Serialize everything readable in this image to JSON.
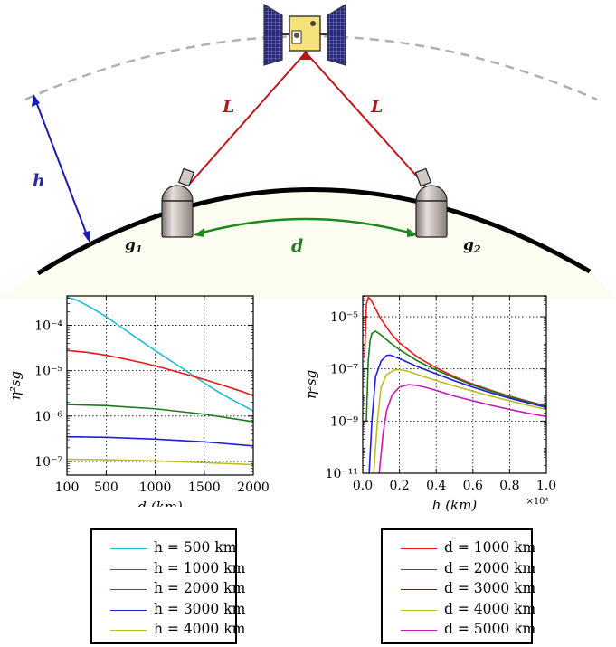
{
  "scene": {
    "label_L_left": "L",
    "label_L_right": "L",
    "label_h": "h",
    "label_d": "d",
    "label_g1": "g",
    "label_g1_sub": "1",
    "label_g2": "g",
    "label_g2_sub": "2",
    "colors": {
      "link": "#c0141b",
      "arc": "#1a8a1a",
      "altitude": "#1b1bb0",
      "orbit": "#b0b0b0"
    }
  },
  "chart_data": [
    {
      "type": "line",
      "xlabel": "d (km)",
      "ylabel": "η²sg",
      "xlim": [
        100,
        2000
      ],
      "ylim_exp": [
        -7.3,
        -3.35
      ],
      "y_scale": "log",
      "grid": true,
      "xticks": [
        "100",
        "500",
        "1000",
        "1500",
        "2000"
      ],
      "xtick_values": [
        100,
        500,
        1000,
        1500,
        2000
      ],
      "yticks": [
        "10⁻⁷",
        "10⁻⁶",
        "10⁻⁵",
        "10⁻⁴"
      ],
      "ytick_exps": [
        -7,
        -6,
        -5,
        -4
      ],
      "legend_placement": "below",
      "series": [
        {
          "name": "h = 500 km",
          "color": "#17becf",
          "x": [
            100,
            200,
            300,
            400,
            500,
            600,
            700,
            800,
            900,
            1000,
            1100,
            1200,
            1300,
            1400,
            1500,
            1600,
            1700,
            1800,
            1900,
            2000
          ],
          "y": [
            0.00042,
            0.00036,
            0.00028,
            0.00021,
            0.000155,
            0.00011,
            7.8e-05,
            5.5e-05,
            3.9e-05,
            2.8e-05,
            2e-05,
            1.45e-05,
            1.05e-05,
            7.5e-06,
            5.4e-06,
            3.9e-06,
            2.9e-06,
            2.2e-06,
            1.7e-06,
            1.3e-06
          ]
        },
        {
          "name": "h = 1000 km",
          "color": "#e41a1c",
          "x": [
            100,
            300,
            500,
            700,
            900,
            1100,
            1300,
            1500,
            1700,
            1900,
            2000
          ],
          "y": [
            2.8e-05,
            2.55e-05,
            2.2e-05,
            1.8e-05,
            1.45e-05,
            1.12e-05,
            8.5e-06,
            6.4e-06,
            4.7e-06,
            3.4e-06,
            2.8e-06
          ]
        },
        {
          "name": "h = 2000 km",
          "color": "#1a7a1a",
          "x": [
            100,
            500,
            1000,
            1500,
            2000
          ],
          "y": [
            1.8e-06,
            1.7e-06,
            1.45e-06,
            1.1e-06,
            7.5e-07
          ]
        },
        {
          "name": "h = 3000 km",
          "color": "#1f1fd6",
          "x": [
            100,
            500,
            1000,
            1500,
            2000
          ],
          "y": [
            3.5e-07,
            3.4e-07,
            3.1e-07,
            2.7e-07,
            2.2e-07
          ]
        },
        {
          "name": "h = 4000 km",
          "color": "#bcbd22",
          "x": [
            100,
            500,
            1000,
            1500,
            2000
          ],
          "y": [
            1.12e-07,
            1.09e-07,
            1.03e-07,
            9.4e-08,
            8.5e-08
          ]
        }
      ]
    },
    {
      "type": "line",
      "xlabel": "h (km)",
      "ylabel": "η²sg",
      "xlim": [
        0,
        1.0
      ],
      "x_multiplier": "×10⁴",
      "ylim_exp": [
        -11,
        -4.2
      ],
      "y_scale": "log",
      "grid": true,
      "xticks": [
        "0.0",
        "0.2",
        "0.4",
        "0.6",
        "0.8",
        "1.0"
      ],
      "xtick_values": [
        0,
        0.2,
        0.4,
        0.6,
        0.8,
        1.0
      ],
      "yticks": [
        "10⁻¹¹",
        "10⁻⁹",
        "10⁻⁷",
        "10⁻⁵"
      ],
      "ytick_exps": [
        -11,
        -9,
        -7,
        -5
      ],
      "legend_placement": "below",
      "series": [
        {
          "name": "d = 1000 km",
          "color": "#e41a1c",
          "x": [
            0.01,
            0.02,
            0.03,
            0.04,
            0.05,
            0.07,
            0.1,
            0.15,
            0.2,
            0.3,
            0.4,
            0.5,
            0.6,
            0.7,
            0.8,
            0.9,
            1.0
          ],
          "y": [
            2.5e-07,
            3e-05,
            5.5e-05,
            5e-05,
            3.8e-05,
            2e-05,
            8e-06,
            2.5e-06,
            1e-06,
            2.8e-07,
            1.1e-07,
            5e-08,
            2.6e-08,
            1.5e-08,
            9e-09,
            5.8e-09,
            3.8e-09
          ]
        },
        {
          "name": "d = 2000 km",
          "color": "#1a7a1a",
          "x": [
            0.02,
            0.03,
            0.04,
            0.05,
            0.07,
            0.1,
            0.15,
            0.2,
            0.3,
            0.4,
            0.5,
            0.6,
            0.7,
            0.8,
            0.9,
            1.0
          ],
          "y": [
            1e-09,
            2e-07,
            1.2e-06,
            2.3e-06,
            2.8e-06,
            2e-06,
            1e-06,
            5.5e-07,
            2e-07,
            9e-08,
            4.5e-08,
            2.4e-08,
            1.4e-08,
            8.5e-09,
            5.5e-09,
            3.6e-09
          ]
        },
        {
          "name": "d = 3000 km",
          "color": "#1f1fd6",
          "x": [
            0.035,
            0.05,
            0.07,
            0.1,
            0.13,
            0.15,
            0.2,
            0.3,
            0.4,
            0.5,
            0.6,
            0.7,
            0.8,
            0.9,
            1.0
          ],
          "y": [
            1e-11,
            1e-09,
            5e-08,
            2e-07,
            3.3e-07,
            3.4e-07,
            2.5e-07,
            1.2e-07,
            6.5e-08,
            3.5e-08,
            2e-08,
            1.2e-08,
            7.5e-09,
            5e-09,
            3.3e-09
          ]
        },
        {
          "name": "d = 4000 km",
          "color": "#bcbd22",
          "x": [
            0.06,
            0.08,
            0.1,
            0.13,
            0.17,
            0.2,
            0.25,
            0.3,
            0.4,
            0.5,
            0.6,
            0.7,
            0.8,
            0.9,
            1.0
          ],
          "y": [
            1e-11,
            1e-09,
            2e-08,
            6e-08,
            9e-08,
            9.5e-08,
            8e-08,
            6e-08,
            3.6e-08,
            2.2e-08,
            1.4e-08,
            9e-09,
            6e-09,
            4e-09,
            2.8e-09
          ]
        },
        {
          "name": "d = 5000 km",
          "color": "#c51bb8",
          "x": [
            0.09,
            0.11,
            0.13,
            0.16,
            0.2,
            0.25,
            0.3,
            0.35,
            0.4,
            0.5,
            0.6,
            0.7,
            0.8,
            0.9,
            1.0
          ],
          "y": [
            1e-11,
            3e-10,
            2.5e-09,
            1e-08,
            2e-08,
            2.5e-08,
            2.3e-08,
            1.9e-08,
            1.5e-08,
            9e-09,
            6e-09,
            4e-09,
            2.8e-09,
            2e-09,
            1.5e-09
          ]
        }
      ]
    }
  ]
}
